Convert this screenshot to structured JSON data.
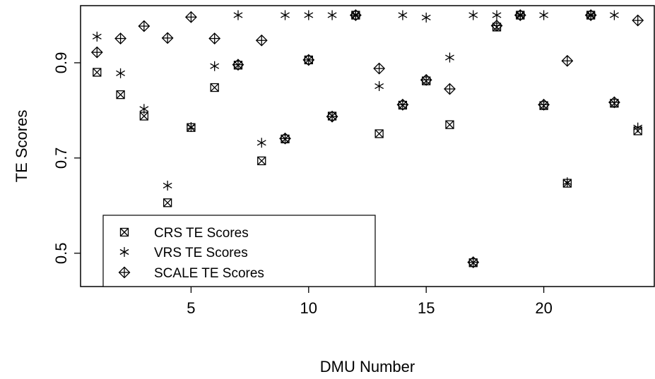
{
  "chart_data": {
    "type": "scatter",
    "xlabel": "DMU Number",
    "ylabel": "TE Scores",
    "xlim": [
      0.3,
      24.7
    ],
    "ylim": [
      0.43,
      1.02
    ],
    "x_ticks": [
      5,
      10,
      15,
      20
    ],
    "y_ticks": [
      0.5,
      0.7,
      0.9
    ],
    "x_tick_labels": [
      "5",
      "10",
      "15",
      "20"
    ],
    "y_tick_labels": [
      "0.5",
      "0.7",
      "0.9"
    ],
    "legend_position": "bottom-left",
    "series": [
      {
        "name": "CRS TE Scores",
        "marker": "boxed-x",
        "x": [
          1,
          2,
          3,
          4,
          5,
          6,
          7,
          8,
          9,
          10,
          11,
          12,
          13,
          14,
          15,
          16,
          17,
          18,
          19,
          20,
          21,
          22,
          23,
          24
        ],
        "y": [
          0.88,
          0.833,
          0.788,
          0.606,
          0.764,
          0.848,
          0.895,
          0.694,
          0.74,
          0.906,
          0.788,
          1.0,
          0.751,
          0.811,
          0.862,
          0.77,
          0.48,
          0.975,
          1.0,
          0.81,
          0.647,
          1.0,
          0.815,
          0.757
        ]
      },
      {
        "name": "VRS TE Scores",
        "marker": "asterisk",
        "x": [
          1,
          2,
          3,
          4,
          5,
          6,
          7,
          8,
          9,
          10,
          11,
          12,
          13,
          14,
          15,
          16,
          17,
          18,
          19,
          20,
          21,
          22,
          23,
          24
        ],
        "y": [
          0.955,
          0.878,
          0.803,
          0.642,
          0.765,
          0.893,
          1.0,
          0.732,
          1.0,
          1.0,
          1.0,
          1.0,
          0.851,
          1.0,
          0.995,
          0.911,
          1.0,
          1.0,
          1.0,
          1.0,
          0.649,
          1.0,
          1.0,
          0.764
        ]
      },
      {
        "name": "SCALE TE Scores",
        "marker": "diamond-plus",
        "x": [
          1,
          2,
          3,
          4,
          5,
          6,
          7,
          8,
          9,
          10,
          11,
          12,
          13,
          14,
          15,
          16,
          17,
          18,
          19,
          20,
          21,
          22,
          23,
          24
        ],
        "y": [
          0.922,
          0.951,
          0.977,
          0.952,
          0.996,
          0.951,
          0.896,
          0.947,
          0.741,
          0.906,
          0.787,
          1.0,
          0.888,
          0.812,
          0.864,
          0.845,
          0.481,
          0.978,
          1.0,
          0.812,
          0.904,
          1.0,
          0.817,
          0.989
        ]
      }
    ]
  }
}
